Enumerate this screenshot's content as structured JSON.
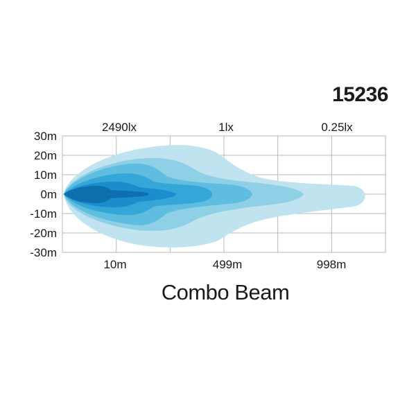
{
  "model_number": "15236",
  "caption": "Combo Beam",
  "chart_data": {
    "type": "area",
    "title": "Combo Beam",
    "y_ticks": [
      "30m",
      "20m",
      "10m",
      "0m",
      "-10m",
      "-20m",
      "-30m"
    ],
    "ylim": [
      -30,
      30
    ],
    "y_unit": "m",
    "top_labels": [
      "2490lx",
      "1lx",
      "0.25lx"
    ],
    "bottom_labels": [
      "10m",
      "499m",
      "998m"
    ],
    "grid": true,
    "grid_columns": 6,
    "colors": {
      "grid": "#b8b8b8",
      "isolux_levels": [
        "#bfe3ef",
        "#8fd0e6",
        "#5fbde0",
        "#35a6d8",
        "#1b8ccc",
        "#0d6fae"
      ]
    },
    "isolux_contours": [
      {
        "level": 1,
        "reach_x": 1.0
      },
      {
        "level": 2,
        "reach_x": 0.8
      },
      {
        "level": 3,
        "reach_x": 0.6
      },
      {
        "level": 4,
        "reach_x": 0.45
      },
      {
        "level": 5,
        "reach_x": 0.35
      },
      {
        "level": 6,
        "reach_x": 0.28
      }
    ]
  }
}
